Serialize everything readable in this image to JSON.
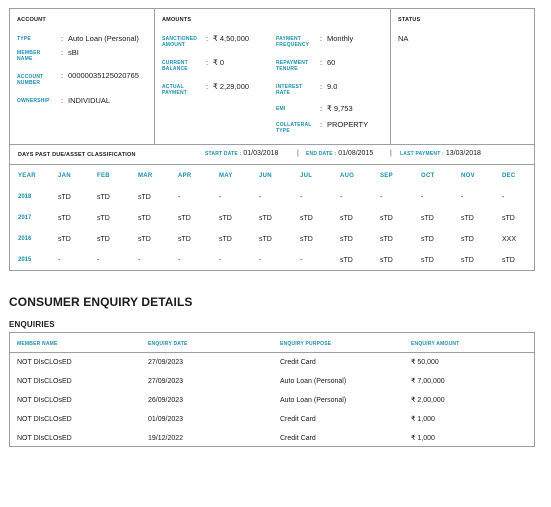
{
  "account": {
    "header": "ACCOUNT",
    "rows": [
      {
        "label": "TYPE",
        "value": "Auto Loan (Personal)"
      },
      {
        "label": "MEMBER NAME",
        "value": "sBI"
      },
      {
        "label": "ACCOUNT NUMBER",
        "value": "00000035125020765"
      },
      {
        "label": "OWNERSHIP",
        "value": "INDIVIDUAL"
      }
    ]
  },
  "amounts": {
    "header": "AMOUNTS",
    "left": [
      {
        "label": "SANCTIONED AMOUNT",
        "value": "₹ 4,50,000"
      },
      {
        "label": "CURRENT BALANCE",
        "value": "₹ 0"
      },
      {
        "label": "ACTUAL PAYMENT",
        "value": "₹ 2,29,000"
      }
    ],
    "right": [
      {
        "label": "PAYMENT FREQUENCY",
        "value": "Monthly"
      },
      {
        "label": "REPAYMENT TENURE",
        "value": "60"
      },
      {
        "label": "INTEREST RATE",
        "value": "9.0"
      },
      {
        "label": "EMI",
        "value": "₹ 9,753"
      },
      {
        "label": "COLLATERAL TYPE",
        "value": "PROPERTY"
      }
    ]
  },
  "status": {
    "header": "STATUS",
    "value": "NA"
  },
  "dpd": {
    "title": "DAYS PAST DUE/ASSET CLASSIFICATION",
    "start_label": "START DATE :",
    "start_value": "01/03/2018",
    "end_label": "END DATE :",
    "end_value": "01/08/2015",
    "last_label": "LAST PAYMENT :",
    "last_value": "13/03/2018",
    "columns": [
      "YEAR",
      "JAN",
      "FEB",
      "MAR",
      "APR",
      "MAY",
      "JUN",
      "JUL",
      "AUG",
      "SEP",
      "OCT",
      "NOV",
      "DEC"
    ],
    "rows": [
      [
        "2018",
        "sTD",
        "sTD",
        "sTD",
        "-",
        "-",
        "-",
        "-",
        "-",
        "-",
        "-",
        "-",
        "-"
      ],
      [
        "2017",
        "sTD",
        "sTD",
        "sTD",
        "sTD",
        "sTD",
        "sTD",
        "sTD",
        "sTD",
        "sTD",
        "sTD",
        "sTD",
        "sTD"
      ],
      [
        "2016",
        "sTD",
        "sTD",
        "sTD",
        "sTD",
        "sTD",
        "sTD",
        "sTD",
        "sTD",
        "sTD",
        "sTD",
        "sTD",
        "XXX"
      ],
      [
        "2015",
        "-",
        "-",
        "-",
        "-",
        "-",
        "-",
        "-",
        "sTD",
        "sTD",
        "sTD",
        "sTD",
        "sTD"
      ]
    ]
  },
  "consumer_enquiry": {
    "title": "CONSUMER ENQUIRY DETAILS",
    "subtitle": "ENQUIRIES",
    "columns": [
      "MEMBER NAME",
      "ENQUIRY DATE",
      "ENQUIRY PURPOSE",
      "ENQUIRY AMOUNT"
    ],
    "rows": [
      [
        "NOT DIsCLOsED",
        "27/09/2023",
        "Credit Card",
        "₹ 50,000"
      ],
      [
        "NOT DIsCLOsED",
        "27/09/2023",
        "Auto Loan (Personal)",
        "₹ 7,00,000"
      ],
      [
        "NOT DIsCLOsED",
        "26/09/2023",
        "Auto Loan (Personal)",
        "₹ 2,00,000"
      ],
      [
        "NOT DIsCLOsED",
        "01/09/2023",
        "Credit Card",
        "₹ 1,000"
      ],
      [
        "NOT DIsCLOsED",
        "19/12/2022",
        "Credit Card",
        "₹ 1,000"
      ]
    ]
  },
  "colors": {
    "accent": "#1b8fb0",
    "border": "#9aa0a6",
    "text": "#1a1a1a"
  }
}
